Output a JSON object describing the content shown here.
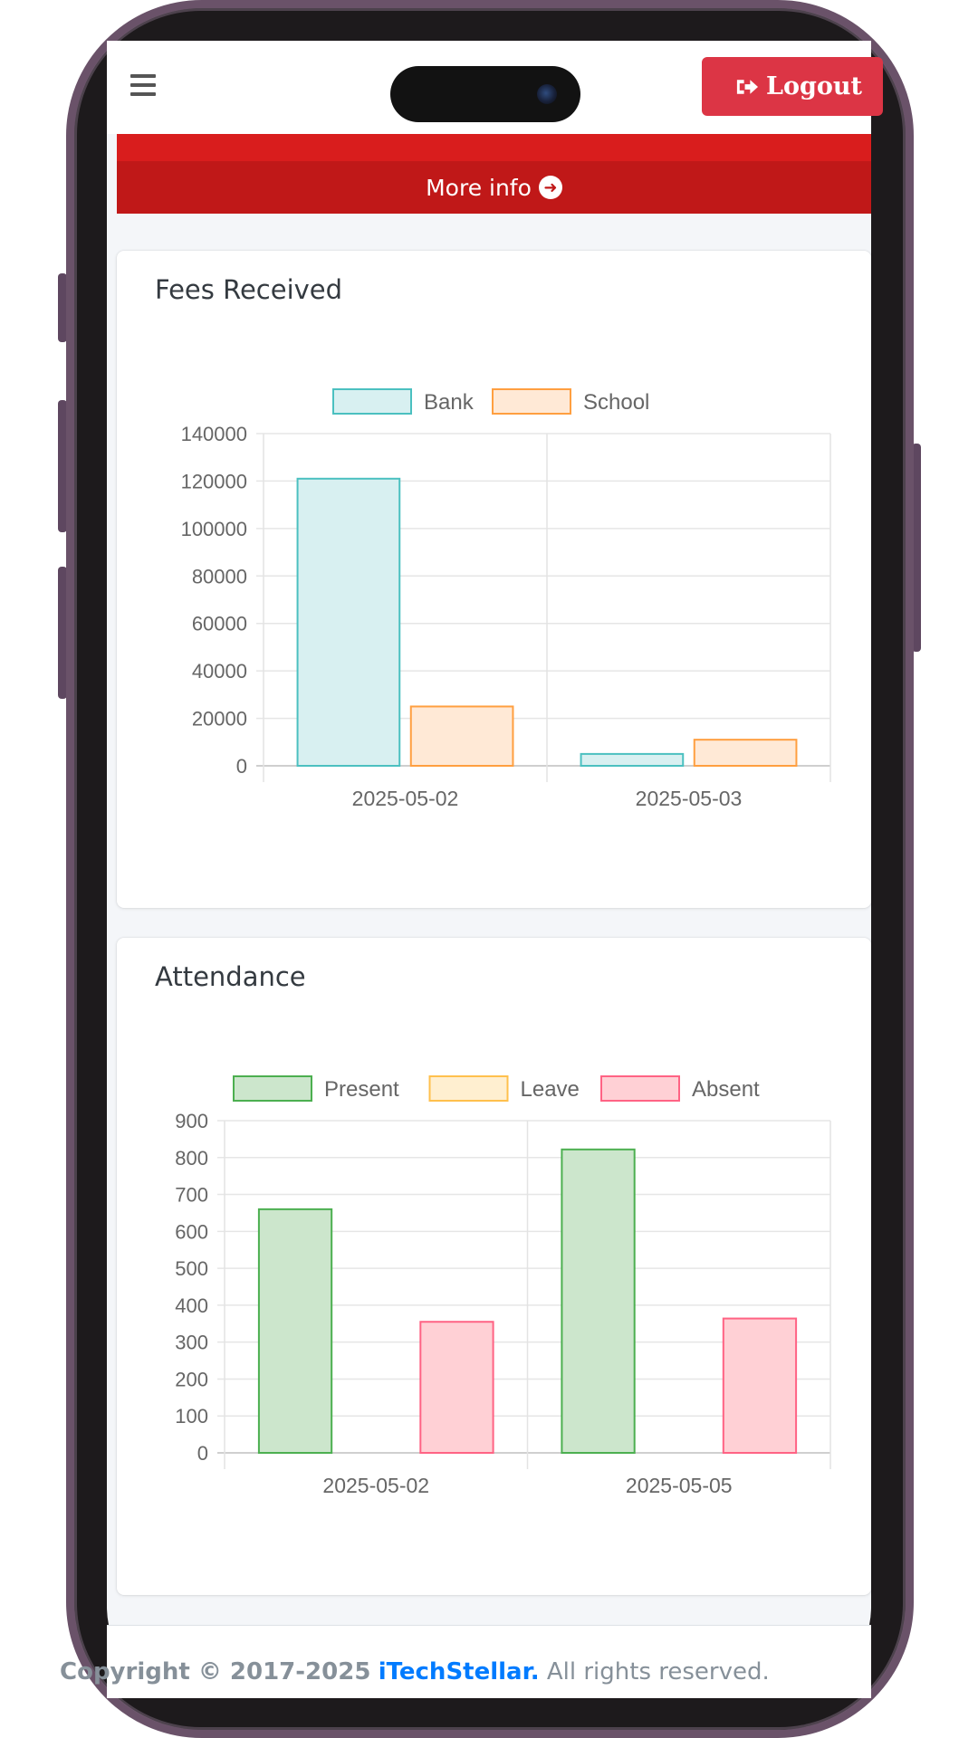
{
  "navbar": {
    "logout_label": "Logout"
  },
  "info_box": {
    "more_info_label": "More info"
  },
  "fees_card": {
    "title": "Fees Received",
    "chart_data": {
      "type": "bar",
      "categories": [
        "2025-05-02",
        "2025-05-03"
      ],
      "series": [
        {
          "name": "Bank",
          "values": [
            121000,
            5000
          ],
          "color": "#4bc0c0",
          "fill": "#d8f0f1"
        },
        {
          "name": "School",
          "values": [
            25000,
            11000
          ],
          "color": "#ff9f40",
          "fill": "#ffe9d6"
        }
      ],
      "ylim": [
        0,
        140000
      ],
      "yticks": [
        0,
        20000,
        40000,
        60000,
        80000,
        100000,
        120000,
        140000
      ],
      "legend": "top",
      "grid": true
    }
  },
  "attendance_card": {
    "title": "Attendance",
    "chart_data": {
      "type": "bar",
      "categories": [
        "2025-05-02",
        "2025-05-05"
      ],
      "series": [
        {
          "name": "Present",
          "values": [
            660,
            822
          ],
          "color": "#4caf50",
          "fill": "#cce6cc"
        },
        {
          "name": "Leave",
          "values": [
            0,
            0
          ],
          "color": "#ffc04d",
          "fill": "#ffefd0"
        },
        {
          "name": "Absent",
          "values": [
            355,
            364
          ],
          "color": "#ff6384",
          "fill": "#ffd0d5"
        }
      ],
      "ylim": [
        0,
        900
      ],
      "yticks": [
        0,
        100,
        200,
        300,
        400,
        500,
        600,
        700,
        800,
        900
      ],
      "legend": "top",
      "grid": true
    }
  },
  "footer": {
    "prefix": "Copyright © 2017-2025",
    "brand": "iTechStellar.",
    "suffix": "All rights reserved."
  },
  "icons": [
    "hamburger-icon",
    "sign-out-icon",
    "arrow-circle-right-icon"
  ]
}
